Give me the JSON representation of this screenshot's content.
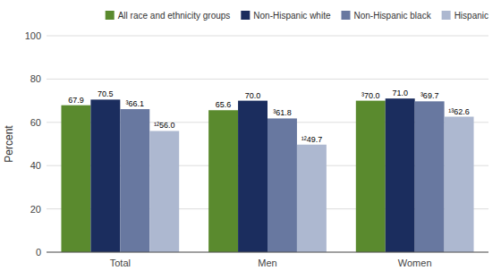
{
  "chart_data": {
    "type": "bar",
    "categories": [
      "Total",
      "Men",
      "Women"
    ],
    "series": [
      {
        "name": "All race and ethnicity groups",
        "color": "#5a8a2e",
        "values": [
          67.9,
          65.6,
          70.0
        ],
        "value_labels": [
          "67.9",
          "65.6",
          "³70.0"
        ]
      },
      {
        "name": "Non-Hispanic white",
        "color": "#1b2d5e",
        "values": [
          70.5,
          70.0,
          71.0
        ],
        "value_labels": [
          "70.5",
          "70.0",
          "71.0"
        ]
      },
      {
        "name": "Non-Hispanic black",
        "color": "#6878a0",
        "values": [
          66.1,
          61.8,
          69.7
        ],
        "value_labels": [
          "³66.1",
          "³61.8",
          "³69.7"
        ]
      },
      {
        "name": "Hispanic",
        "color": "#adb8d0",
        "values": [
          56.0,
          49.7,
          62.6
        ],
        "value_labels": [
          "¹²56.0",
          "¹²49.7",
          "¹³62.6"
        ]
      }
    ],
    "ylabel": "Percent",
    "ylim": [
      0,
      100
    ],
    "yticks": [
      0,
      20,
      40,
      60,
      80,
      100
    ],
    "grid": true,
    "legend": "upper right",
    "data_labels": true
  }
}
